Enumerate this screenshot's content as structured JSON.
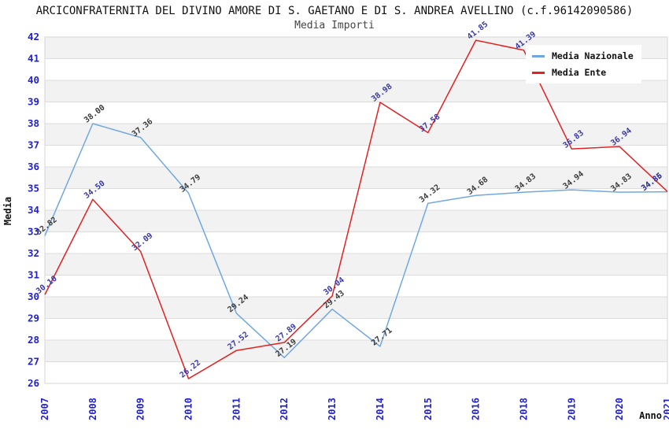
{
  "header": {
    "title": "ARCICONFRATERNITA DEL DIVINO AMORE DI S. GAETANO E DI S. ANDREA AVELLINO (c.f.96142090586)",
    "subtitle": "Media Importi"
  },
  "chart_data": {
    "type": "line",
    "title": "ARCICONFRATERNITA DEL DIVINO AMORE DI S. GAETANO E DI S. ANDREA AVELLINO (c.f.96142090586)",
    "subtitle": "Media Importi",
    "xlabel": "Anno",
    "ylabel": "Media",
    "categories": [
      "2007",
      "2008",
      "2009",
      "2010",
      "2011",
      "2012",
      "2013",
      "2014",
      "2015",
      "2016",
      "2018",
      "2019",
      "2020",
      "2021"
    ],
    "series": [
      {
        "name": "Media Nazionale",
        "color": "#6FA8E0",
        "label_color": "#3b3b3b",
        "values": [
          32.82,
          38.0,
          37.36,
          34.79,
          29.24,
          27.19,
          29.43,
          27.71,
          34.32,
          34.68,
          34.83,
          34.94,
          34.83,
          34.85
        ]
      },
      {
        "name": "Media Ente",
        "color": "#E02222",
        "label_color": "#3939A8",
        "values": [
          30.1,
          34.5,
          32.09,
          26.22,
          27.52,
          27.89,
          30.04,
          38.98,
          37.58,
          41.85,
          41.39,
          36.83,
          36.94,
          34.86
        ]
      }
    ],
    "ylim": [
      26,
      42
    ],
    "ytick_step": 1,
    "grid": "horizontal",
    "band_fill": "#F2F2F2",
    "gridline_color": "#DCDCDC",
    "border_color": "#D6D6D6",
    "tick_label_color": "#2222CC",
    "axis_title_color": "#111111",
    "legend_position": "top-right"
  }
}
